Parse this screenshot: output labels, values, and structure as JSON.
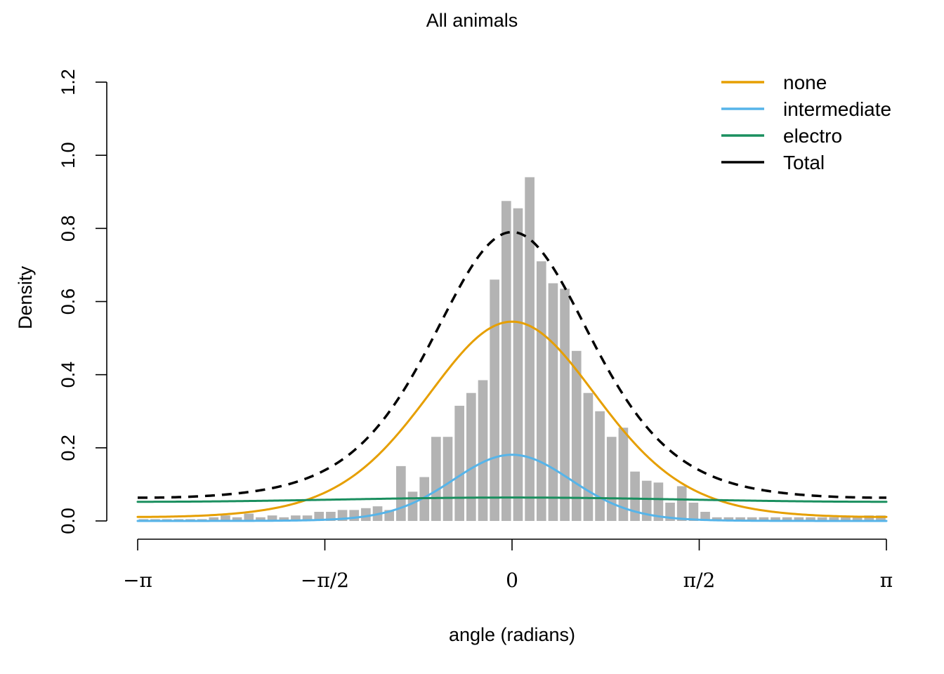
{
  "chart_data": {
    "type": "bar",
    "title": "All animals",
    "xlabel": "angle (radians)",
    "ylabel": "Density",
    "xlim": [
      -3.14159,
      3.14159
    ],
    "ylim": [
      0,
      1.2
    ],
    "x_ticks": [
      {
        "value": -3.14159,
        "label": "−π"
      },
      {
        "value": -1.5708,
        "label": "−π/2"
      },
      {
        "value": 0,
        "label": "0"
      },
      {
        "value": 1.5708,
        "label": "π/2"
      },
      {
        "value": 3.14159,
        "label": "π"
      }
    ],
    "y_ticks": [
      {
        "value": 0.0,
        "label": "0.0"
      },
      {
        "value": 0.2,
        "label": "0.2"
      },
      {
        "value": 0.4,
        "label": "0.4"
      },
      {
        "value": 0.6,
        "label": "0.6"
      },
      {
        "value": 0.8,
        "label": "0.8"
      },
      {
        "value": 1.0,
        "label": "1.0"
      },
      {
        "value": 1.2,
        "label": "1.2"
      }
    ],
    "histogram": {
      "color": "#b3b3b3",
      "bin_width": 0.0982,
      "bin_start": -3.14159,
      "densities": [
        0.005,
        0.005,
        0.005,
        0.005,
        0.005,
        0.005,
        0.01,
        0.015,
        0.01,
        0.02,
        0.01,
        0.015,
        0.01,
        0.015,
        0.015,
        0.025,
        0.025,
        0.03,
        0.03,
        0.035,
        0.04,
        0.03,
        0.15,
        0.08,
        0.12,
        0.23,
        0.23,
        0.315,
        0.35,
        0.385,
        0.66,
        0.875,
        0.855,
        0.94,
        0.71,
        0.65,
        0.635,
        0.465,
        0.35,
        0.3,
        0.23,
        0.255,
        0.135,
        0.11,
        0.105,
        0.05,
        0.095,
        0.05,
        0.025,
        0.01,
        0.01,
        0.01,
        0.01,
        0.01,
        0.01,
        0.01,
        0.01,
        0.01,
        0.01,
        0.01,
        0.01,
        0.01,
        0.015,
        0.015
      ]
    },
    "series": [
      {
        "name": "none",
        "color": "#E69F00",
        "style": "solid",
        "kappa": 1.95,
        "peak": 0.545
      },
      {
        "name": "intermediate",
        "color": "#56B4E9",
        "style": "solid",
        "kappa": 4.0,
        "peak": 0.181
      },
      {
        "name": "electro",
        "color": "#1A8F5F",
        "style": "solid",
        "kappa": 0.1,
        "peak": 0.064
      },
      {
        "name": "Total",
        "color": "#000000",
        "style": "dashed",
        "peak": 0.795
      }
    ],
    "legend": {
      "placement": "top-right",
      "entries": [
        {
          "label": "none",
          "color": "#E69F00"
        },
        {
          "label": "intermediate",
          "color": "#56B4E9"
        },
        {
          "label": "electro",
          "color": "#1A8F5F"
        },
        {
          "label": "Total",
          "color": "#000000"
        }
      ]
    },
    "grid": false
  }
}
